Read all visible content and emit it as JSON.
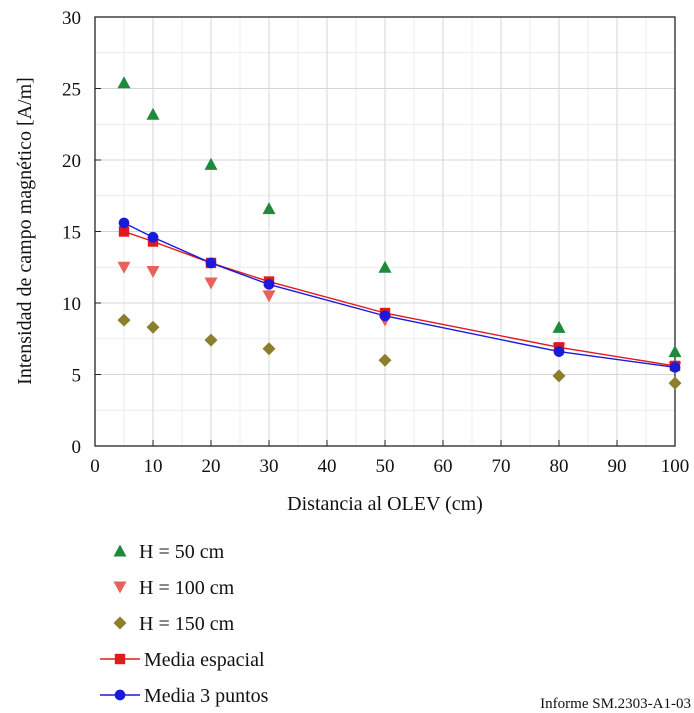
{
  "chart_data": {
    "type": "scatter",
    "xlabel": "Distancia al OLEV (cm)",
    "ylabel": "Intensidad de campo magnético [A/m]",
    "xlim": [
      0,
      100
    ],
    "ylim": [
      0,
      30
    ],
    "x_ticks": [
      0,
      10,
      20,
      30,
      40,
      50,
      60,
      70,
      80,
      90,
      100
    ],
    "y_ticks": [
      0,
      5,
      10,
      15,
      20,
      25,
      30
    ],
    "grid": true,
    "legend_position": "below",
    "series": [
      {
        "name": "H = 50 cm",
        "marker": "triangle-up",
        "color": "#1e8a3c",
        "line": false,
        "x": [
          5,
          10,
          20,
          30,
          50,
          80,
          100
        ],
        "y": [
          25.4,
          23.2,
          19.7,
          16.6,
          12.5,
          8.3,
          6.6
        ]
      },
      {
        "name": "H = 100 cm",
        "marker": "triangle-down",
        "color": "#e8625a",
        "line": false,
        "x": [
          5,
          10,
          20,
          30,
          50,
          80,
          100
        ],
        "y": [
          12.5,
          12.2,
          11.4,
          10.5,
          8.8,
          6.8,
          5.5
        ]
      },
      {
        "name": "H = 150 cm",
        "marker": "diamond",
        "color": "#8c7f2c",
        "line": false,
        "x": [
          5,
          10,
          20,
          30,
          50,
          80,
          100
        ],
        "y": [
          8.8,
          8.3,
          7.4,
          6.8,
          6.0,
          4.9,
          4.4
        ]
      },
      {
        "name": "Media espacial",
        "marker": "square",
        "color": "#e01a1a",
        "line": true,
        "x": [
          5,
          10,
          20,
          30,
          50,
          80,
          100
        ],
        "y": [
          15.0,
          14.3,
          12.8,
          11.5,
          9.3,
          6.9,
          5.6
        ]
      },
      {
        "name": "Media 3 puntos",
        "marker": "circle",
        "color": "#1a1adc",
        "line": true,
        "x": [
          5,
          10,
          20,
          30,
          50,
          80,
          100
        ],
        "y": [
          15.6,
          14.6,
          12.8,
          11.3,
          9.1,
          6.6,
          5.5
        ]
      }
    ],
    "source_note": "Informe SM.2303-A1-03"
  }
}
